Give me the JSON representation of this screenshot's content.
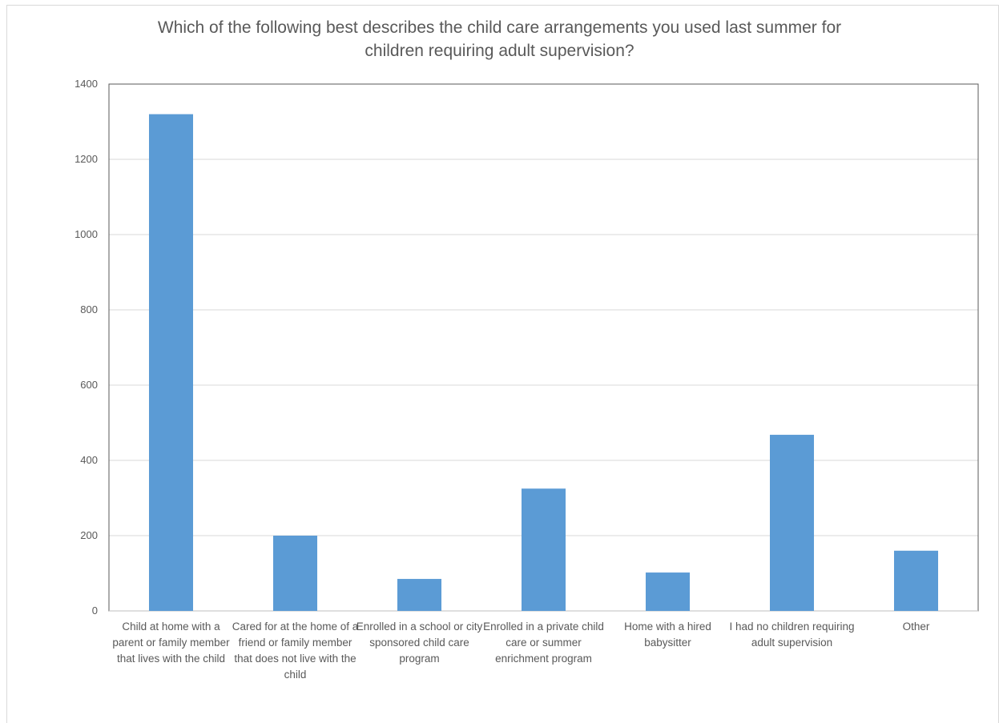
{
  "chart_data": {
    "type": "bar",
    "title": "Which of the following best describes the child care arrangements you used last summer for\nchildren requiring adult supervision?",
    "xlabel": "",
    "ylabel": "",
    "categories": [
      "Child at home with a parent or family member that lives with the child",
      "Cared for at the home of a friend or family member that does not live with the child",
      "Enrolled in a school or city sponsored child care program",
      "Enrolled in a private child care or summer enrichment program",
      "Home with a hired babysitter",
      "I had no children requiring adult supervision",
      "Other"
    ],
    "values": [
      1320,
      200,
      85,
      325,
      102,
      468,
      160
    ],
    "ylim": [
      0,
      1400
    ],
    "yticks": [
      "0",
      "200",
      "400",
      "600",
      "800",
      "1000",
      "1200",
      "1400"
    ],
    "grid": true,
    "legend": "none",
    "bar_color": "#5B9BD5"
  }
}
